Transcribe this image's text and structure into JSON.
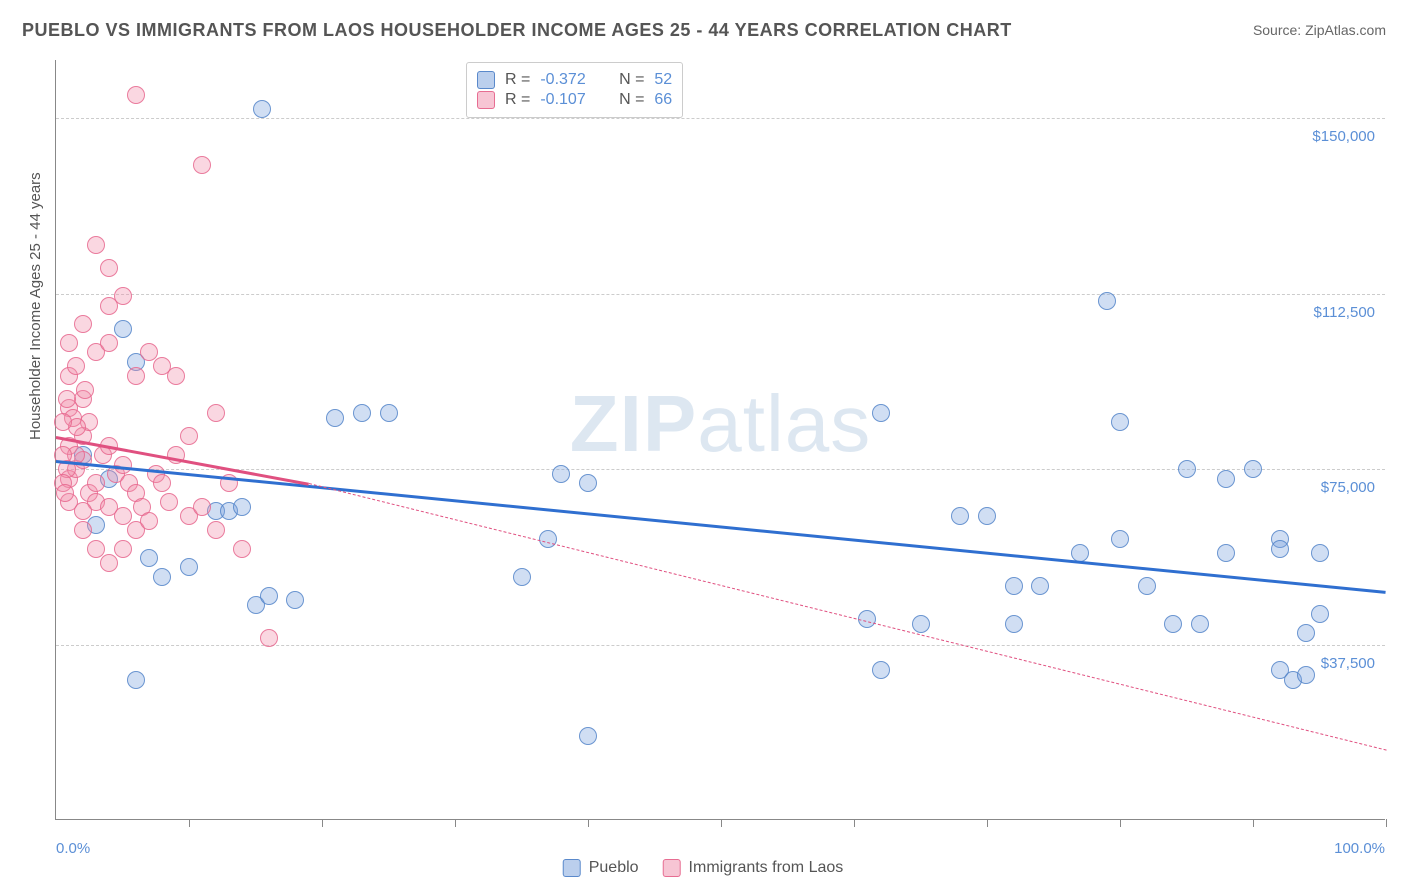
{
  "title": "PUEBLO VS IMMIGRANTS FROM LAOS HOUSEHOLDER INCOME AGES 25 - 44 YEARS CORRELATION CHART",
  "source_label": "Source: ",
  "source_value": "ZipAtlas.com",
  "ylabel": "Householder Income Ages 25 - 44 years",
  "watermark_bold": "ZIP",
  "watermark_light": "atlas",
  "chart": {
    "type": "scatter",
    "xlim": [
      0,
      100
    ],
    "ylim": [
      0,
      162500
    ],
    "x_tick_label_min": "0.0%",
    "x_tick_label_max": "100.0%",
    "xticks": [
      10,
      20,
      30,
      40,
      50,
      60,
      70,
      80,
      90,
      100
    ],
    "y_gridlines": [
      {
        "value": 37500,
        "label": "$37,500"
      },
      {
        "value": 75000,
        "label": "$75,000"
      },
      {
        "value": 112500,
        "label": "$112,500"
      },
      {
        "value": 150000,
        "label": "$150,000"
      }
    ],
    "point_radius": 9,
    "background_color": "#ffffff",
    "grid_color": "#cccccc",
    "axis_color": "#888888",
    "tick_label_color": "#5b8fd6",
    "series": [
      {
        "name": "Pueblo",
        "color_fill": "rgba(120,160,220,0.35)",
        "color_stroke": "rgba(80,130,200,0.8)",
        "class": "series-blue",
        "swatch_class": "swatch-blue",
        "R": "-0.372",
        "N": "52",
        "trend": {
          "x1": 0,
          "y1": 77000,
          "x2": 100,
          "y2": 49000,
          "color": "#2f6fd0",
          "dash_extend": false
        },
        "points": [
          {
            "x": 15.5,
            "y": 152000
          },
          {
            "x": 5,
            "y": 105000
          },
          {
            "x": 6,
            "y": 98000
          },
          {
            "x": 79,
            "y": 111000
          },
          {
            "x": 21,
            "y": 86000
          },
          {
            "x": 23,
            "y": 87000
          },
          {
            "x": 25,
            "y": 87000
          },
          {
            "x": 2,
            "y": 78000
          },
          {
            "x": 4,
            "y": 73000
          },
          {
            "x": 7,
            "y": 56000
          },
          {
            "x": 8,
            "y": 52000
          },
          {
            "x": 3,
            "y": 63000
          },
          {
            "x": 6,
            "y": 30000
          },
          {
            "x": 10,
            "y": 54000
          },
          {
            "x": 12,
            "y": 66000
          },
          {
            "x": 13,
            "y": 66000
          },
          {
            "x": 14,
            "y": 67000
          },
          {
            "x": 15,
            "y": 46000
          },
          {
            "x": 16,
            "y": 48000
          },
          {
            "x": 18,
            "y": 47000
          },
          {
            "x": 38,
            "y": 74000
          },
          {
            "x": 40,
            "y": 72000
          },
          {
            "x": 37,
            "y": 60000
          },
          {
            "x": 35,
            "y": 52000
          },
          {
            "x": 40,
            "y": 18000
          },
          {
            "x": 62,
            "y": 87000
          },
          {
            "x": 61,
            "y": 43000
          },
          {
            "x": 62,
            "y": 32000
          },
          {
            "x": 65,
            "y": 42000
          },
          {
            "x": 68,
            "y": 65000
          },
          {
            "x": 70,
            "y": 65000
          },
          {
            "x": 72,
            "y": 42000
          },
          {
            "x": 72,
            "y": 50000
          },
          {
            "x": 74,
            "y": 50000
          },
          {
            "x": 77,
            "y": 57000
          },
          {
            "x": 80,
            "y": 60000
          },
          {
            "x": 80,
            "y": 85000
          },
          {
            "x": 82,
            "y": 50000
          },
          {
            "x": 84,
            "y": 42000
          },
          {
            "x": 86,
            "y": 42000
          },
          {
            "x": 85,
            "y": 75000
          },
          {
            "x": 88,
            "y": 73000
          },
          {
            "x": 88,
            "y": 57000
          },
          {
            "x": 90,
            "y": 75000
          },
          {
            "x": 92,
            "y": 60000
          },
          {
            "x": 92,
            "y": 58000
          },
          {
            "x": 92,
            "y": 32000
          },
          {
            "x": 93,
            "y": 30000
          },
          {
            "x": 94,
            "y": 40000
          },
          {
            "x": 94,
            "y": 31000
          },
          {
            "x": 95,
            "y": 57000
          },
          {
            "x": 95,
            "y": 44000
          }
        ]
      },
      {
        "name": "Immigrants from Laos",
        "color_fill": "rgba(240,140,170,0.35)",
        "color_stroke": "rgba(230,100,140,0.8)",
        "class": "series-pink",
        "swatch_class": "swatch-pink",
        "R": "-0.107",
        "N": "66",
        "trend": {
          "x1": 0,
          "y1": 82000,
          "x2": 19,
          "y2": 72000,
          "color": "#e05080",
          "dash_extend": true,
          "dash_x2": 100,
          "dash_y2": 15000
        },
        "points": [
          {
            "x": 6,
            "y": 155000
          },
          {
            "x": 11,
            "y": 140000
          },
          {
            "x": 3,
            "y": 123000
          },
          {
            "x": 4,
            "y": 118000
          },
          {
            "x": 1,
            "y": 95000
          },
          {
            "x": 1.5,
            "y": 97000
          },
          {
            "x": 2,
            "y": 90000
          },
          {
            "x": 2.2,
            "y": 92000
          },
          {
            "x": 2,
            "y": 82000
          },
          {
            "x": 2.5,
            "y": 85000
          },
          {
            "x": 4,
            "y": 110000
          },
          {
            "x": 5,
            "y": 112000
          },
          {
            "x": 1,
            "y": 102000
          },
          {
            "x": 2,
            "y": 106000
          },
          {
            "x": 3,
            "y": 100000
          },
          {
            "x": 4,
            "y": 102000
          },
          {
            "x": 6,
            "y": 95000
          },
          {
            "x": 7,
            "y": 100000
          },
          {
            "x": 1,
            "y": 73000
          },
          {
            "x": 1.5,
            "y": 75000
          },
          {
            "x": 2,
            "y": 77000
          },
          {
            "x": 2.5,
            "y": 70000
          },
          {
            "x": 3,
            "y": 68000
          },
          {
            "x": 3,
            "y": 72000
          },
          {
            "x": 3.5,
            "y": 78000
          },
          {
            "x": 4,
            "y": 80000
          },
          {
            "x": 4,
            "y": 67000
          },
          {
            "x": 4.5,
            "y": 74000
          },
          {
            "x": 5,
            "y": 76000
          },
          {
            "x": 5,
            "y": 65000
          },
          {
            "x": 1,
            "y": 88000
          },
          {
            "x": 1.3,
            "y": 86000
          },
          {
            "x": 1.6,
            "y": 84000
          },
          {
            "x": 5.5,
            "y": 72000
          },
          {
            "x": 6,
            "y": 70000
          },
          {
            "x": 6,
            "y": 62000
          },
          {
            "x": 6.5,
            "y": 67000
          },
          {
            "x": 7,
            "y": 64000
          },
          {
            "x": 7.5,
            "y": 74000
          },
          {
            "x": 8,
            "y": 97000
          },
          {
            "x": 9,
            "y": 95000
          },
          {
            "x": 8,
            "y": 72000
          },
          {
            "x": 8.5,
            "y": 68000
          },
          {
            "x": 9,
            "y": 78000
          },
          {
            "x": 10,
            "y": 82000
          },
          {
            "x": 10,
            "y": 65000
          },
          {
            "x": 11,
            "y": 67000
          },
          {
            "x": 12,
            "y": 87000
          },
          {
            "x": 12,
            "y": 62000
          },
          {
            "x": 13,
            "y": 72000
          },
          {
            "x": 14,
            "y": 58000
          },
          {
            "x": 16,
            "y": 39000
          },
          {
            "x": 2,
            "y": 62000
          },
          {
            "x": 3,
            "y": 58000
          },
          {
            "x": 4,
            "y": 55000
          },
          {
            "x": 1,
            "y": 80000
          },
          {
            "x": 1.5,
            "y": 78000
          },
          {
            "x": 5,
            "y": 58000
          },
          {
            "x": 1,
            "y": 68000
          },
          {
            "x": 2,
            "y": 66000
          },
          {
            "x": 0.8,
            "y": 90000
          },
          {
            "x": 0.5,
            "y": 85000
          },
          {
            "x": 0.5,
            "y": 78000
          },
          {
            "x": 0.8,
            "y": 75000
          },
          {
            "x": 0.5,
            "y": 72000
          },
          {
            "x": 0.7,
            "y": 70000
          }
        ]
      }
    ]
  },
  "stats_box": {
    "r_label": "R =",
    "n_label": "N ="
  },
  "legend": {
    "series1": "Pueblo",
    "series2": "Immigrants from Laos"
  }
}
